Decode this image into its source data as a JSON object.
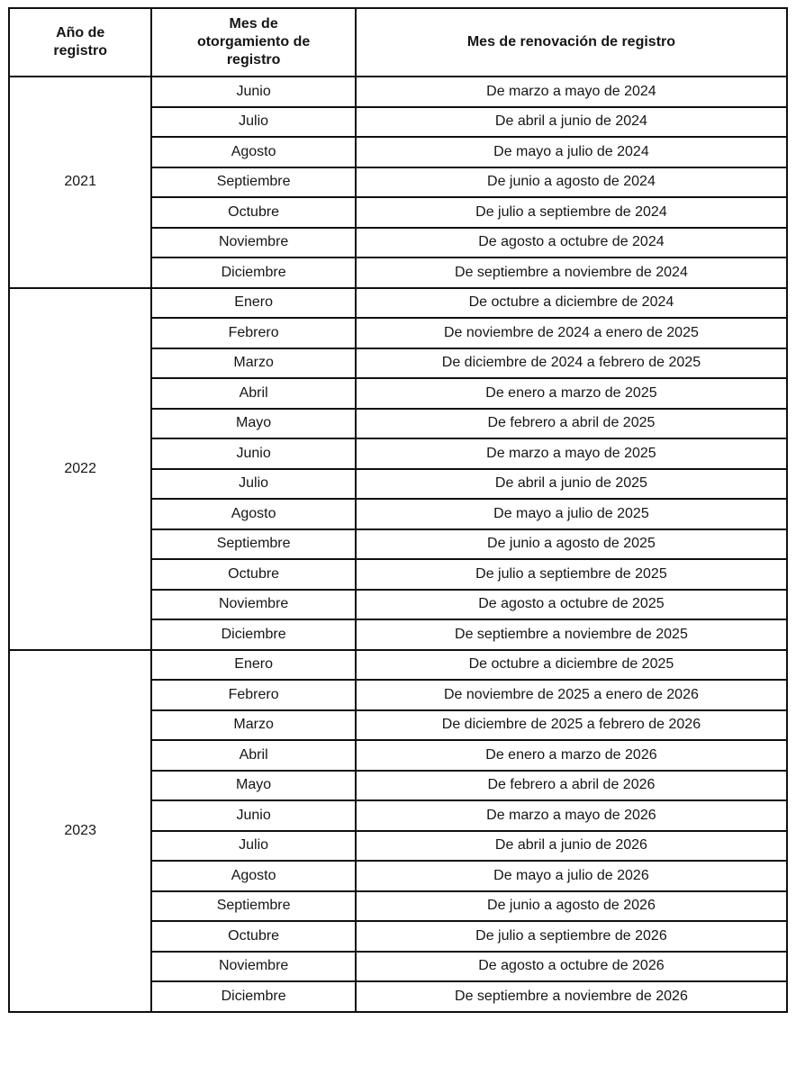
{
  "colors": {
    "border": "#0f0f0f",
    "text": "#161616",
    "background": "#ffffff"
  },
  "table": {
    "headers": {
      "year": "Año de registro",
      "grant_month": "Mes de otorgamiento de registro",
      "renewal_month": "Mes de renovación de registro"
    },
    "groups": [
      {
        "year": "2021",
        "rows": [
          {
            "month": "Junio",
            "renewal": "De marzo a mayo de 2024"
          },
          {
            "month": "Julio",
            "renewal": "De abril a junio de 2024"
          },
          {
            "month": "Agosto",
            "renewal": "De mayo a julio de 2024"
          },
          {
            "month": "Septiembre",
            "renewal": "De junio a agosto de 2024"
          },
          {
            "month": "Octubre",
            "renewal": "De julio a septiembre de 2024"
          },
          {
            "month": "Noviembre",
            "renewal": "De agosto a octubre de 2024"
          },
          {
            "month": "Diciembre",
            "renewal": "De septiembre a noviembre de 2024"
          }
        ]
      },
      {
        "year": "2022",
        "rows": [
          {
            "month": "Enero",
            "renewal": "De octubre a diciembre de 2024"
          },
          {
            "month": "Febrero",
            "renewal": "De noviembre de 2024 a enero de 2025"
          },
          {
            "month": "Marzo",
            "renewal": "De diciembre de 2024 a febrero de 2025"
          },
          {
            "month": "Abril",
            "renewal": "De enero a marzo de 2025"
          },
          {
            "month": "Mayo",
            "renewal": "De febrero a abril de 2025"
          },
          {
            "month": "Junio",
            "renewal": "De marzo a mayo de 2025"
          },
          {
            "month": "Julio",
            "renewal": "De abril a junio de 2025"
          },
          {
            "month": "Agosto",
            "renewal": "De mayo a julio de 2025"
          },
          {
            "month": "Septiembre",
            "renewal": "De junio a agosto de 2025"
          },
          {
            "month": "Octubre",
            "renewal": "De julio a septiembre de 2025"
          },
          {
            "month": "Noviembre",
            "renewal": "De agosto a octubre de 2025"
          },
          {
            "month": "Diciembre",
            "renewal": "De septiembre a noviembre de 2025"
          }
        ]
      },
      {
        "year": "2023",
        "rows": [
          {
            "month": "Enero",
            "renewal": "De octubre a diciembre de 2025"
          },
          {
            "month": "Febrero",
            "renewal": "De noviembre de 2025 a enero de 2026"
          },
          {
            "month": "Marzo",
            "renewal": "De diciembre de 2025 a febrero de 2026"
          },
          {
            "month": "Abril",
            "renewal": "De enero a marzo de 2026"
          },
          {
            "month": "Mayo",
            "renewal": "De febrero a abril de 2026"
          },
          {
            "month": "Junio",
            "renewal": "De marzo a mayo de 2026"
          },
          {
            "month": "Julio",
            "renewal": "De abril a junio de 2026"
          },
          {
            "month": "Agosto",
            "renewal": "De mayo a julio de 2026"
          },
          {
            "month": "Septiembre",
            "renewal": "De junio a agosto de 2026"
          },
          {
            "month": "Octubre",
            "renewal": "De julio a septiembre de 2026"
          },
          {
            "month": "Noviembre",
            "renewal": "De agosto a octubre de 2026"
          },
          {
            "month": "Diciembre",
            "renewal": "De septiembre a noviembre de 2026"
          }
        ]
      }
    ]
  }
}
